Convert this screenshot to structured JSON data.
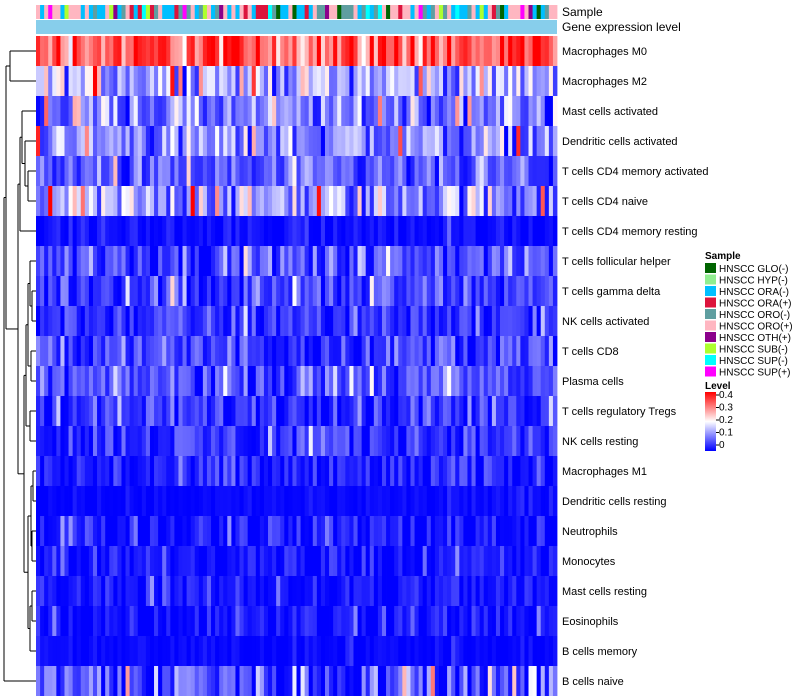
{
  "chart_data": {
    "type": "heatmap",
    "title": "",
    "annotation_labels": [
      "Sample",
      "Gene expression level"
    ],
    "row_labels": [
      "Macrophages M0",
      "Macrophages M2",
      "Mast cells activated",
      "Dendritic cells activated",
      "T cells CD4 memory activated",
      "T cells CD4 naive",
      "T cells CD4 memory resting",
      "T cells follicular helper",
      "T cells gamma delta",
      "NK cells activated",
      "T cells CD8",
      "Plasma cells",
      "T cells regulatory  Tregs",
      "NK cells resting",
      "Macrophages M1",
      "Dendritic cells resting",
      "Neutrophils",
      "Monocytes",
      "Mast cells resting",
      "Eosinophils",
      "B cells memory",
      "B cells naive"
    ],
    "row_mean_level": [
      0.33,
      0.14,
      0.09,
      0.11,
      0.06,
      0.12,
      0.01,
      0.06,
      0.05,
      0.04,
      0.05,
      0.06,
      0.04,
      0.04,
      0.02,
      0.005,
      0.02,
      0.015,
      0.015,
      0.015,
      0.005,
      0.06
    ],
    "row_variability": [
      0.08,
      0.07,
      0.06,
      0.07,
      0.05,
      0.08,
      0.02,
      0.05,
      0.05,
      0.04,
      0.05,
      0.05,
      0.04,
      0.04,
      0.04,
      0.01,
      0.04,
      0.03,
      0.03,
      0.03,
      0.01,
      0.08
    ],
    "n_samples": 128,
    "sample_legend": {
      "title": "Sample",
      "entries": [
        {
          "label": "HNSCC GLO(-)",
          "color": "#006400"
        },
        {
          "label": "HNSCC HYP(-)",
          "color": "#90ee90"
        },
        {
          "label": "HNSCC ORA(-)",
          "color": "#00bfff"
        },
        {
          "label": "HNSCC ORA(+)",
          "color": "#dc143c"
        },
        {
          "label": "HNSCC ORO(-)",
          "color": "#5f9ea0"
        },
        {
          "label": "HNSCC ORO(+)",
          "color": "#ffb6c1"
        },
        {
          "label": "HNSCC OTH(+)",
          "color": "#8b008b"
        },
        {
          "label": "HNSCC SUB(-)",
          "color": "#adff2f"
        },
        {
          "label": "HNSCC SUP(-)",
          "color": "#00ffff"
        },
        {
          "label": "HNSCC SUP(+)",
          "color": "#ff00ff"
        }
      ]
    },
    "level_legend": {
      "title": "Level",
      "ticks": [
        "0.4",
        "0.3",
        "0.2",
        "0.1",
        "0"
      ],
      "range": [
        0,
        0.4
      ],
      "colors": {
        "low": "#0000ff",
        "mid": "#ffffff",
        "high": "#ff0000"
      }
    },
    "gene_expression_bar_color": "#87ceeb",
    "dendrogram": "hierarchical row clustering (left)"
  }
}
